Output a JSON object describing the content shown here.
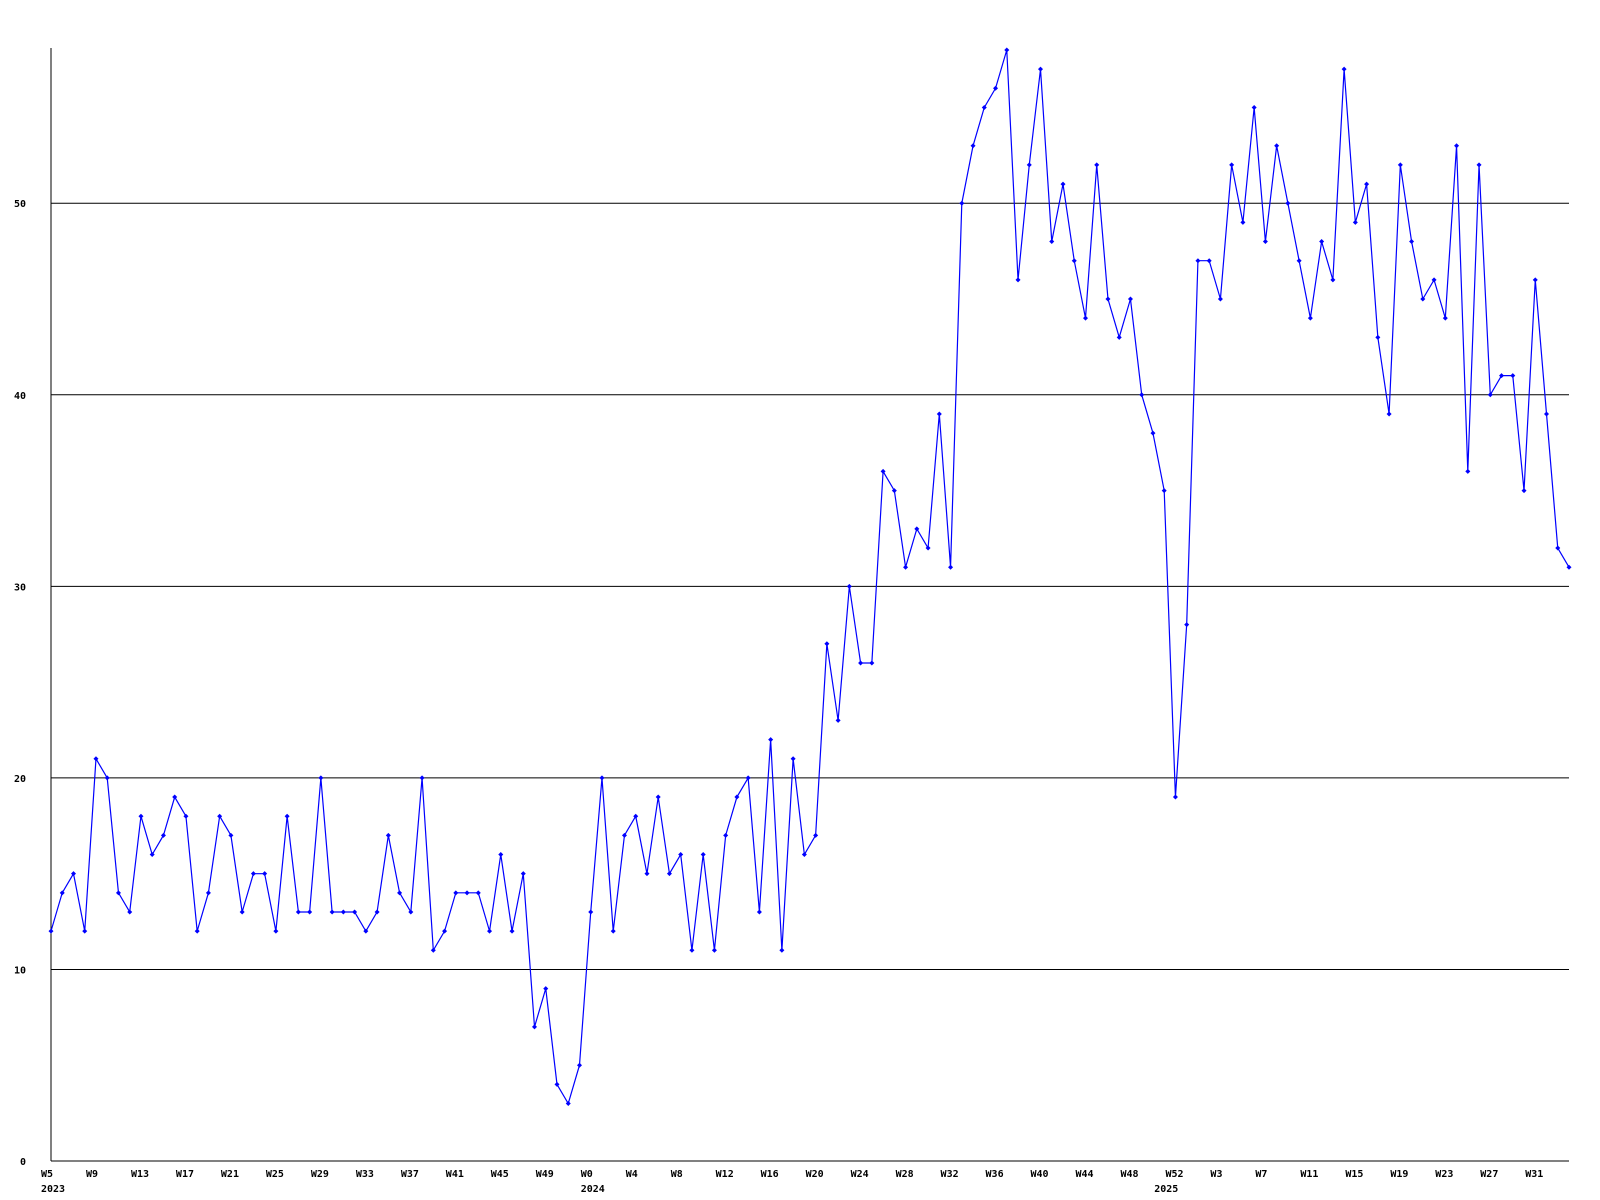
{
  "chart_data": {
    "type": "line",
    "categories": [
      "W5",
      null,
      null,
      null,
      "W9",
      null,
      null,
      null,
      "W13",
      null,
      null,
      null,
      "W17",
      null,
      null,
      null,
      "W21",
      null,
      null,
      null,
      "W25",
      null,
      null,
      null,
      "W29",
      null,
      null,
      null,
      "W33",
      null,
      null,
      null,
      "W37",
      null,
      null,
      null,
      "W41",
      null,
      null,
      null,
      "W45",
      null,
      null,
      null,
      "W49",
      null,
      null,
      null,
      "W0",
      null,
      null,
      null,
      "W4",
      null,
      null,
      null,
      "W8",
      null,
      null,
      null,
      "W12",
      null,
      null,
      null,
      "W16",
      null,
      null,
      null,
      "W20",
      null,
      null,
      null,
      "W24",
      null,
      null,
      null,
      "W28",
      null,
      null,
      null,
      "W32",
      null,
      null,
      null,
      "W36",
      null,
      null,
      null,
      "W40",
      null,
      null,
      null,
      "W44",
      null,
      null,
      null,
      "W48",
      null,
      null,
      null,
      "W52",
      null,
      null,
      null,
      "W3",
      null,
      null,
      null,
      "W7",
      null,
      null,
      null,
      "W11",
      null,
      null,
      null,
      "W15",
      null,
      null,
      null,
      "W19",
      null,
      null,
      null,
      "W23",
      null,
      null,
      null,
      "W27",
      null,
      null,
      null,
      "W31",
      null,
      null,
      null
    ],
    "years": [
      "2023",
      null,
      null,
      null,
      null,
      null,
      null,
      null,
      null,
      null,
      null,
      null,
      null,
      null,
      null,
      null,
      null,
      null,
      null,
      null,
      null,
      null,
      null,
      null,
      null,
      null,
      null,
      null,
      null,
      null,
      null,
      null,
      null,
      null,
      null,
      null,
      null,
      null,
      null,
      null,
      null,
      null,
      null,
      null,
      null,
      null,
      null,
      null,
      "2024",
      null,
      null,
      null,
      null,
      null,
      null,
      null,
      null,
      null,
      null,
      null,
      null,
      null,
      null,
      null,
      null,
      null,
      null,
      null,
      null,
      null,
      null,
      null,
      null,
      null,
      null,
      null,
      null,
      null,
      null,
      null,
      null,
      null,
      null,
      null,
      null,
      null,
      null,
      null,
      null,
      null,
      null,
      null,
      null,
      null,
      null,
      null,
      null,
      null,
      null,
      "2025",
      null,
      null,
      null,
      null,
      null,
      null,
      null,
      null,
      null,
      null,
      null,
      null,
      null,
      null,
      null,
      null,
      null,
      null,
      null,
      null,
      null,
      null,
      null,
      null,
      null,
      null,
      null,
      null,
      null,
      null,
      null,
      null,
      null,
      null
    ],
    "series": [
      {
        "color": "#0000ff",
        "values": [
          12,
          14,
          15,
          12,
          21,
          20,
          14,
          13,
          18,
          16,
          17,
          19,
          18,
          12,
          14,
          18,
          17,
          13,
          15,
          15,
          12,
          18,
          13,
          13,
          20,
          13,
          13,
          13,
          12,
          13,
          17,
          14,
          13,
          20,
          11,
          12,
          14,
          14,
          14,
          12,
          16,
          12,
          15,
          7,
          9,
          4,
          3,
          5,
          13,
          20,
          12,
          17,
          18,
          15,
          19,
          15,
          16,
          11,
          16,
          11,
          17,
          19,
          20,
          13,
          22,
          11,
          21,
          16,
          17,
          27,
          23,
          30,
          26,
          26,
          36,
          35,
          31,
          33,
          32,
          39,
          31,
          50,
          53,
          55,
          56,
          58,
          46,
          52,
          57,
          48,
          51,
          47,
          44,
          52,
          45,
          43,
          45,
          40,
          38,
          35,
          19,
          28,
          47,
          47,
          45,
          52,
          49,
          55,
          48,
          53,
          50,
          47,
          44,
          48,
          46,
          57,
          49,
          51,
          43,
          39,
          52,
          48,
          45,
          46,
          44,
          53,
          36,
          52,
          40,
          41,
          41,
          35,
          46,
          39,
          32,
          31
        ]
      }
    ],
    "ylim": [
      0,
      58
    ],
    "yticks": [
      0,
      10,
      20,
      30,
      40,
      50
    ],
    "grid": true
  }
}
